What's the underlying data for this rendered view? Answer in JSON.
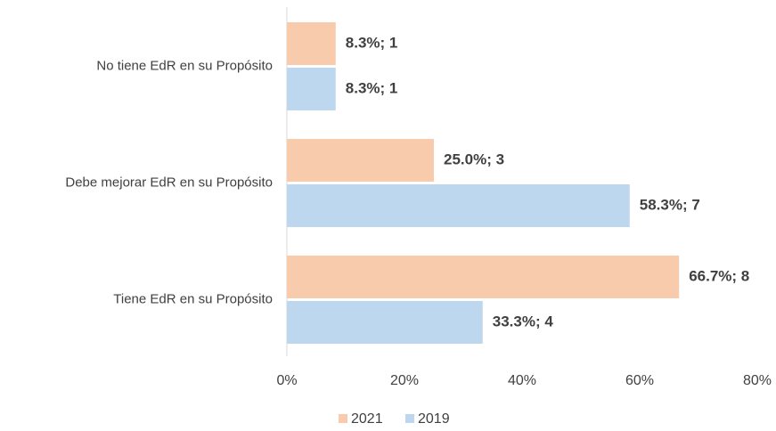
{
  "chart_data": {
    "type": "hbar",
    "categories": [
      "No tiene EdR en su Propósito",
      "Debe mejorar EdR en su Propósito",
      "Tiene EdR en su Propósito"
    ],
    "series": [
      {
        "name": "2021",
        "color": "#f8cbad",
        "values": [
          8.3,
          25.0,
          66.7
        ],
        "value_labels": [
          "8.3%; 1",
          "25.0%; 3",
          "66.7%; 8"
        ]
      },
      {
        "name": "2019",
        "color": "#bdd7ee",
        "values": [
          8.3,
          58.3,
          33.3
        ],
        "value_labels": [
          "8.3%; 1",
          "58.3%; 7",
          "33.3%; 4"
        ]
      }
    ],
    "xlim": [
      0,
      80
    ],
    "xticks": [
      {
        "value": 0,
        "label": "0%"
      },
      {
        "value": 20,
        "label": "20%"
      },
      {
        "value": 40,
        "label": "40%"
      },
      {
        "value": 60,
        "label": "60%"
      },
      {
        "value": 80,
        "label": "80%"
      }
    ],
    "legend": "bottom"
  }
}
